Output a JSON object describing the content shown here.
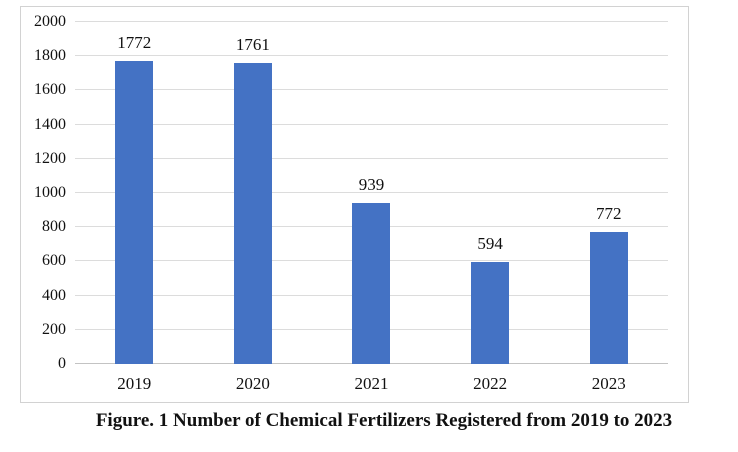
{
  "figure": {
    "caption": "Figure. 1 Number of Chemical Fertilizers Registered from 2019 to 2023"
  },
  "chart_data": {
    "type": "bar",
    "title": "",
    "xlabel": "",
    "ylabel": "",
    "categories": [
      "2019",
      "2020",
      "2021",
      "2022",
      "2023"
    ],
    "values": [
      1772,
      1761,
      939,
      594,
      772
    ],
    "data_labels": [
      "1772",
      "1761",
      "939",
      "594",
      "772"
    ],
    "ylim": [
      0,
      2000
    ],
    "ytick_interval": 200,
    "ytick_labels": [
      "0",
      "200",
      "400",
      "600",
      "800",
      "1000",
      "1200",
      "1400",
      "1600",
      "1800",
      "2000"
    ],
    "grid": true,
    "legend": "none",
    "colors": {
      "bar": "#4472C4",
      "gridline": "#DCDCDC",
      "axis_line": "#C3C3C3",
      "frame_border": "#D2D2D2",
      "text": "#111111"
    }
  }
}
